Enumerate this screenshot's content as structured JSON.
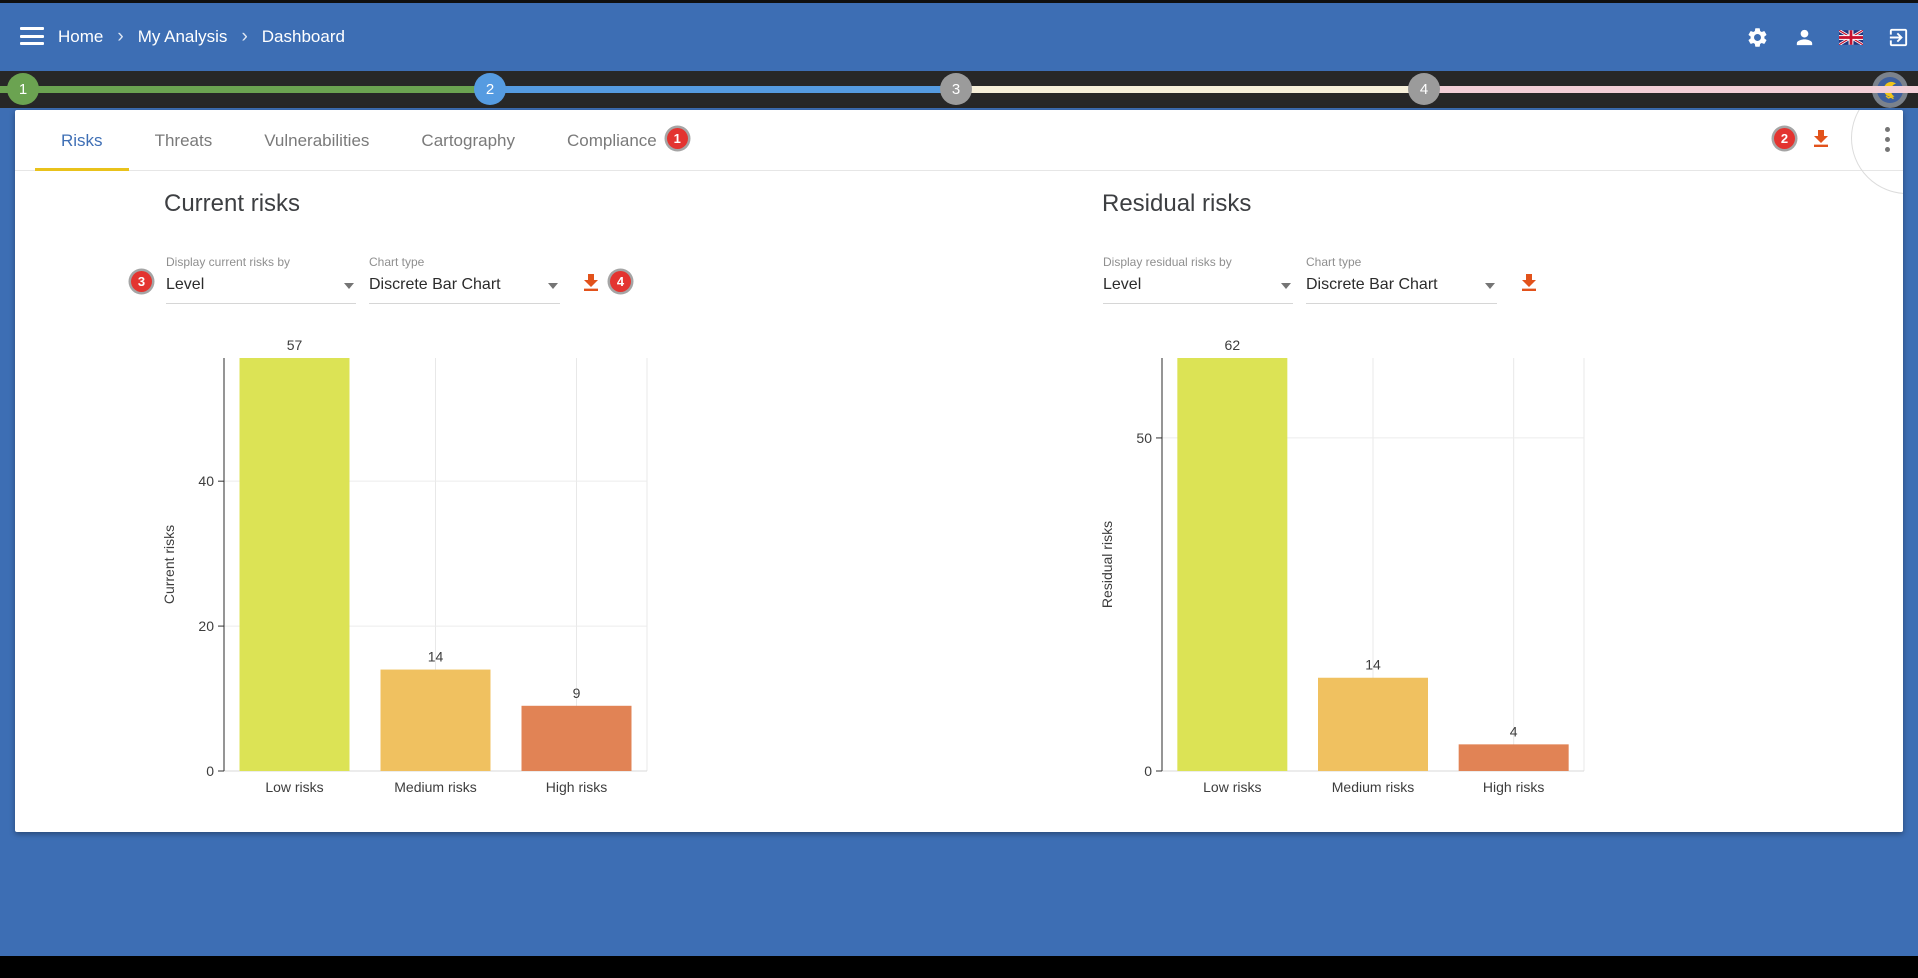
{
  "colors": {
    "header_blue": "#3D6EB4",
    "active_tab_blue": "#3F6FB5",
    "tab_ink_bar_yellow": "#E9C21B",
    "annotation_badge_red": "#E33430",
    "download_icon_orange": "#E2521B",
    "step_done_green": "#6BA351",
    "step_active_blue": "#559BE1",
    "step_pending_gray": "#9B9B9B",
    "segment_cream": "#F6EFD9",
    "segment_pink": "#F3CFD7"
  },
  "header": {
    "breadcrumb": [
      "Home",
      "My Analysis",
      "Dashboard"
    ],
    "icon_names": [
      "menu-icon",
      "settings-icon",
      "user-icon",
      "uk-flag-icon",
      "logout-icon"
    ]
  },
  "stepper": {
    "steps": [
      {
        "number": "1",
        "circle_color": "#6BA351",
        "segment_color": "#6BA351"
      },
      {
        "number": "2",
        "circle_color": "#559BE1",
        "segment_color": "#559BE1"
      },
      {
        "number": "3",
        "circle_color": "#9B9B9B",
        "segment_color": "#F6EFD9"
      },
      {
        "number": "4",
        "circle_color": "#9B9B9B",
        "segment_color": "#F3CFD7"
      }
    ],
    "end_icon": "monarc-logo-icon"
  },
  "tabs": [
    {
      "label": "Risks",
      "active": true
    },
    {
      "label": "Threats",
      "active": false
    },
    {
      "label": "Vulnerabilities",
      "active": false
    },
    {
      "label": "Cartography",
      "active": false
    },
    {
      "label": "Compliance",
      "active": false
    }
  ],
  "annotations": {
    "one": "1",
    "two": "2",
    "three": "3",
    "four": "4"
  },
  "panels": [
    {
      "title": "Current risks",
      "display_by": {
        "label": "Display current risks by",
        "value": "Level"
      },
      "chart_type": {
        "label": "Chart type",
        "value": "Discrete Bar Chart"
      }
    },
    {
      "title": "Residual risks",
      "display_by": {
        "label": "Display residual risks by",
        "value": "Level"
      },
      "chart_type": {
        "label": "Chart type",
        "value": "Discrete Bar Chart"
      }
    }
  ],
  "chart_data": [
    {
      "type": "bar",
      "title": "Current risks",
      "categories": [
        "Low risks",
        "Medium risks",
        "High risks"
      ],
      "values": [
        57,
        14,
        9
      ],
      "bar_colors": [
        "#DCE355",
        "#F0C160",
        "#E18355"
      ],
      "xlabel": "",
      "ylabel": "Current risks",
      "yticks": [
        0,
        20,
        40
      ],
      "ylim": [
        0,
        57
      ],
      "grid": true,
      "legend": false
    },
    {
      "type": "bar",
      "title": "Residual risks",
      "categories": [
        "Low risks",
        "Medium risks",
        "High risks"
      ],
      "values": [
        62,
        14,
        4
      ],
      "bar_colors": [
        "#DCE355",
        "#F0C160",
        "#E18355"
      ],
      "xlabel": "",
      "ylabel": "Residual risks",
      "yticks": [
        0,
        50
      ],
      "ylim": [
        0,
        62
      ],
      "grid": true,
      "legend": false
    }
  ]
}
